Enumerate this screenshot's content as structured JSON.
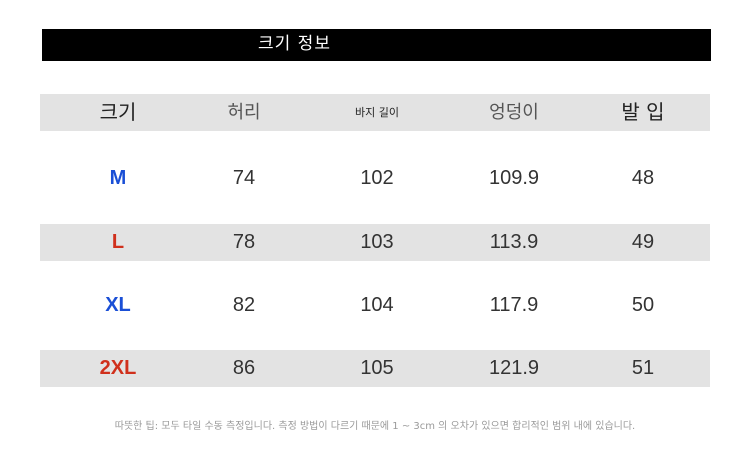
{
  "title": "크기 정보",
  "headers": [
    "크기",
    "허리",
    "바지 길이",
    "엉덩이",
    "발 입"
  ],
  "rows": [
    {
      "size": "M",
      "color": "#1a4fd6",
      "waist": "74",
      "length": "102",
      "hip": "109.9",
      "hem": "48"
    },
    {
      "size": "L",
      "color": "#d0301c",
      "waist": "78",
      "length": "103",
      "hip": "113.9",
      "hem": "49"
    },
    {
      "size": "XL",
      "color": "#1a4fd6",
      "waist": "82",
      "length": "104",
      "hip": "117.9",
      "hem": "50"
    },
    {
      "size": "2XL",
      "color": "#d0301c",
      "waist": "86",
      "length": "105",
      "hip": "121.9",
      "hem": "51"
    }
  ],
  "note": "따뜻한 팁: 모두 타일 수동 측정입니다. 측정 방법이 다르기 때문에 1 ~ 3cm 의 오차가 있으면 합리적인 범위 내에 있습니다."
}
